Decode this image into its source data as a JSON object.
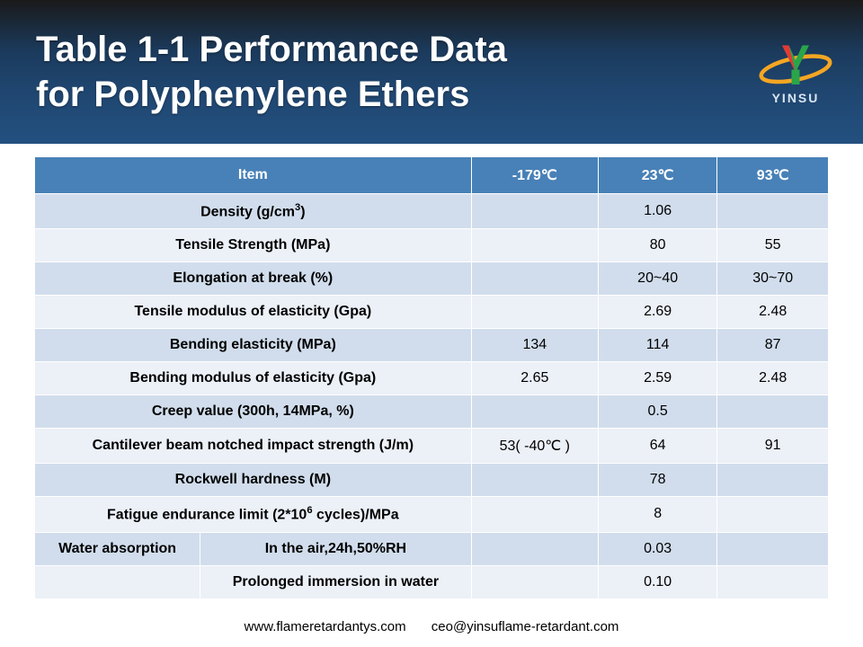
{
  "header": {
    "title_line1": "Table 1-1 Performance Data",
    "title_line2": "for Polyphenylene Ethers",
    "logo_text": "YINSU"
  },
  "watermark": "YINSU",
  "table": {
    "header_bg": "#4881b7",
    "header_fg": "#ffffff",
    "row_odd_bg": "#d1ddec",
    "row_even_bg": "#ecf0f7",
    "columns": {
      "item": "Item",
      "t1": "-179℃",
      "t2": "23℃",
      "t3": "93℃"
    },
    "rows": [
      {
        "item": "Density (g/cm3)",
        "t1": "",
        "t2": "1.06",
        "t3": ""
      },
      {
        "item": "Tensile Strength (MPa)",
        "t1": "",
        "t2": "80",
        "t3": "55"
      },
      {
        "item": "Elongation at break (%)",
        "t1": "",
        "t2": "20~40",
        "t3": "30~70"
      },
      {
        "item": "Tensile modulus of elasticity (Gpa)",
        "t1": "",
        "t2": "2.69",
        "t3": "2.48"
      },
      {
        "item": "Bending elasticity (MPa)",
        "t1": "134",
        "t2": "114",
        "t3": "87"
      },
      {
        "item": "Bending modulus of elasticity (Gpa)",
        "t1": "2.65",
        "t2": "2.59",
        "t3": "2.48"
      },
      {
        "item": "Creep value (300h, 14MPa, %)",
        "t1": "",
        "t2": "0.5",
        "t3": ""
      },
      {
        "item": "Cantilever beam notched impact strength (J/m)",
        "t1": "53( -40℃ )",
        "t2": "64",
        "t3": "91"
      },
      {
        "item": "Rockwell hardness (M)",
        "t1": "",
        "t2": "78",
        "t3": ""
      },
      {
        "item": "Fatigue endurance limit (2*106 cycles)/MPa",
        "t1": "",
        "t2": "8",
        "t3": ""
      }
    ],
    "water_absorption": {
      "label": "Water absorption",
      "sub": [
        {
          "item": "In the air,24h,50%RH",
          "t1": "",
          "t2": "0.03",
          "t3": ""
        },
        {
          "item": "Prolonged immersion in water",
          "t1": "",
          "t2": "0.10",
          "t3": ""
        }
      ]
    }
  },
  "footer": {
    "url": "www.flameretardantys.com",
    "email": "ceo@yinsuflame-retardant.com"
  }
}
